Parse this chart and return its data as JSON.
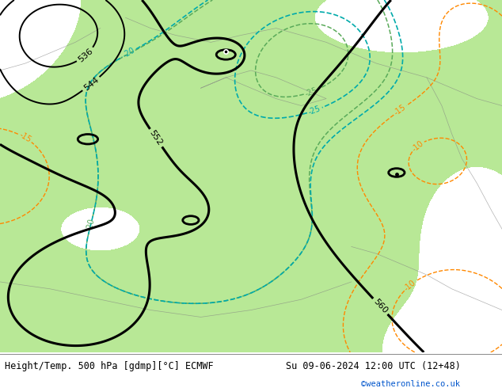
{
  "title_left": "Height/Temp. 500 hPa [gdmp][°C] ECMWF",
  "title_right": "Su 09-06-2024 12:00 UTC (12+48)",
  "credit": "©weatheronline.co.uk",
  "bg_color": "#c8c8c8",
  "land_color": "#b8e896",
  "bottom_bar_color": "#ffffff",
  "z500_color": "#000000",
  "temp_green_color": "#5aaa5a",
  "temp_cyan_color": "#00aaaa",
  "temp_orange_color": "#ff8800",
  "label_fontsize": 7,
  "title_fontsize": 8.5
}
